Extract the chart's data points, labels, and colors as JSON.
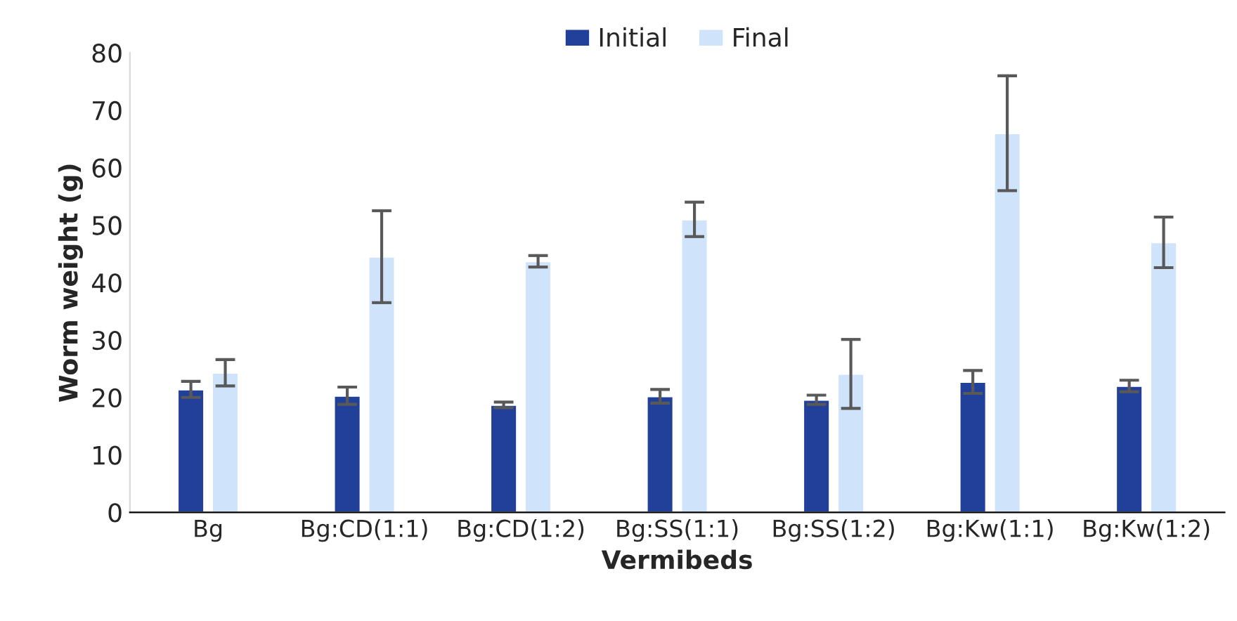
{
  "chart_data": {
    "type": "bar",
    "xlabel": "Vermibeds",
    "ylabel": "Worm weight (g)",
    "categories": [
      "Bg",
      "Bg:CD(1:1)",
      "Bg:CD(1:2)",
      "Bg:SS(1:1)",
      "Bg:SS(1:2)",
      "Bg:Kw(1:1)",
      "Bg:Kw(1:2)"
    ],
    "series": [
      {
        "name": "Initial",
        "color": "#21409a",
        "values": [
          21.4,
          20.3,
          18.7,
          20.2,
          19.6,
          22.7,
          22.0
        ],
        "errors": [
          1.4,
          1.5,
          0.5,
          1.2,
          0.8,
          2.0,
          1.0
        ]
      },
      {
        "name": "Final",
        "color": "#cfe4fb",
        "values": [
          24.3,
          44.5,
          43.7,
          51.0,
          24.1,
          66.0,
          47.0
        ],
        "errors": [
          2.3,
          8.0,
          1.0,
          3.0,
          6.0,
          10.0,
          4.4
        ]
      }
    ],
    "ylim": [
      0,
      80
    ],
    "yticks": [
      0,
      10,
      20,
      30,
      40,
      50,
      60,
      70,
      80
    ],
    "grid": false,
    "legend": "top"
  }
}
